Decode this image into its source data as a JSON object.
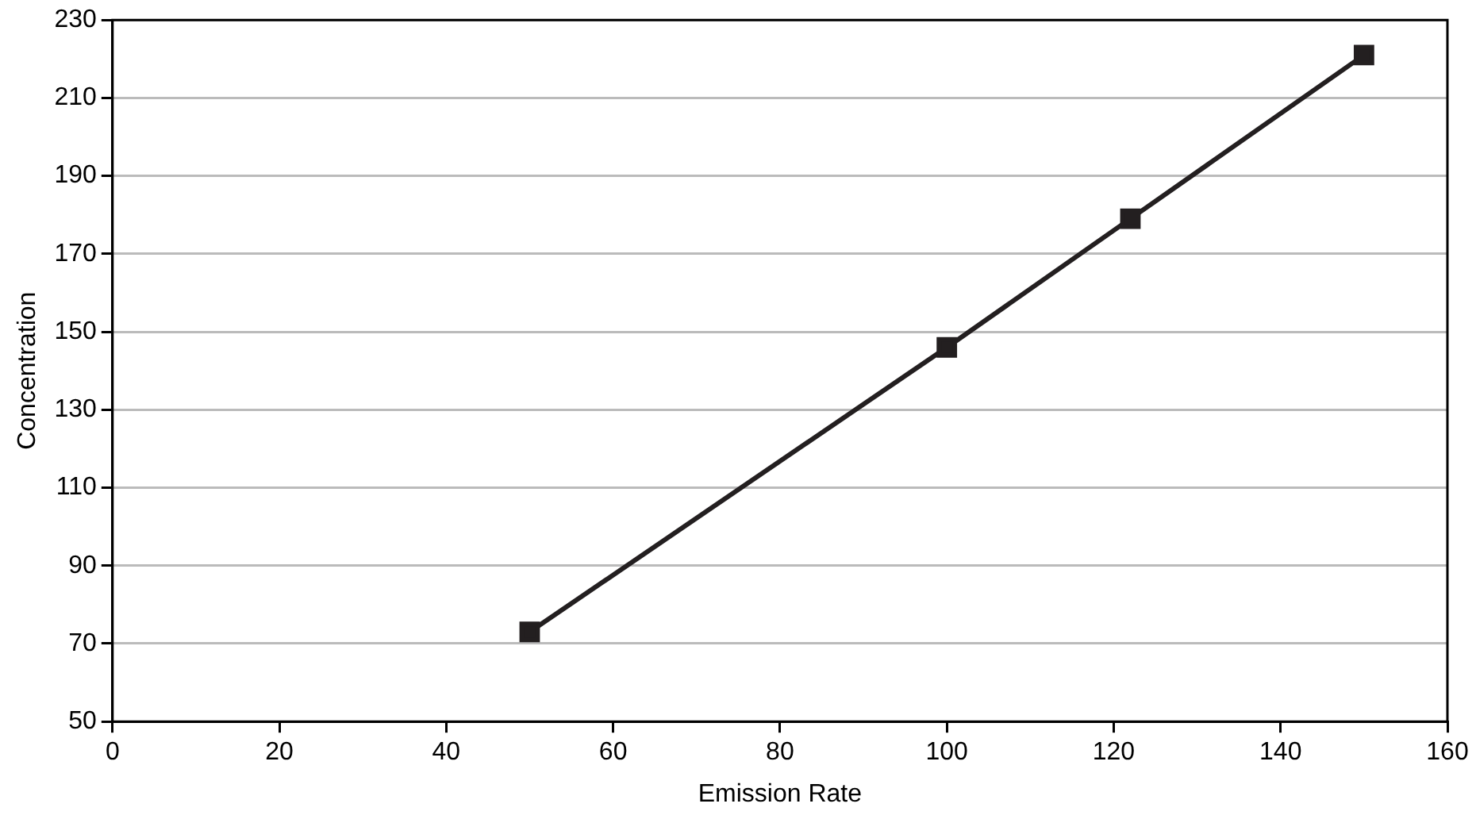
{
  "chart_data": {
    "type": "line",
    "xlabel": "Emission Rate",
    "ylabel": "Concentration",
    "x": [
      50,
      100,
      122,
      150
    ],
    "series": [
      {
        "color": "#231f20",
        "values": [
          73,
          146,
          179,
          221
        ]
      }
    ],
    "xlim": [
      0,
      160
    ],
    "xticks": [
      0,
      20,
      40,
      60,
      80,
      100,
      120,
      140,
      160
    ],
    "ylim": [
      50,
      230
    ],
    "yticks": [
      50,
      70,
      90,
      110,
      130,
      150,
      170,
      190,
      210,
      230
    ],
    "grid": "y",
    "legend": false,
    "marker": "square",
    "line_style": "solid"
  }
}
